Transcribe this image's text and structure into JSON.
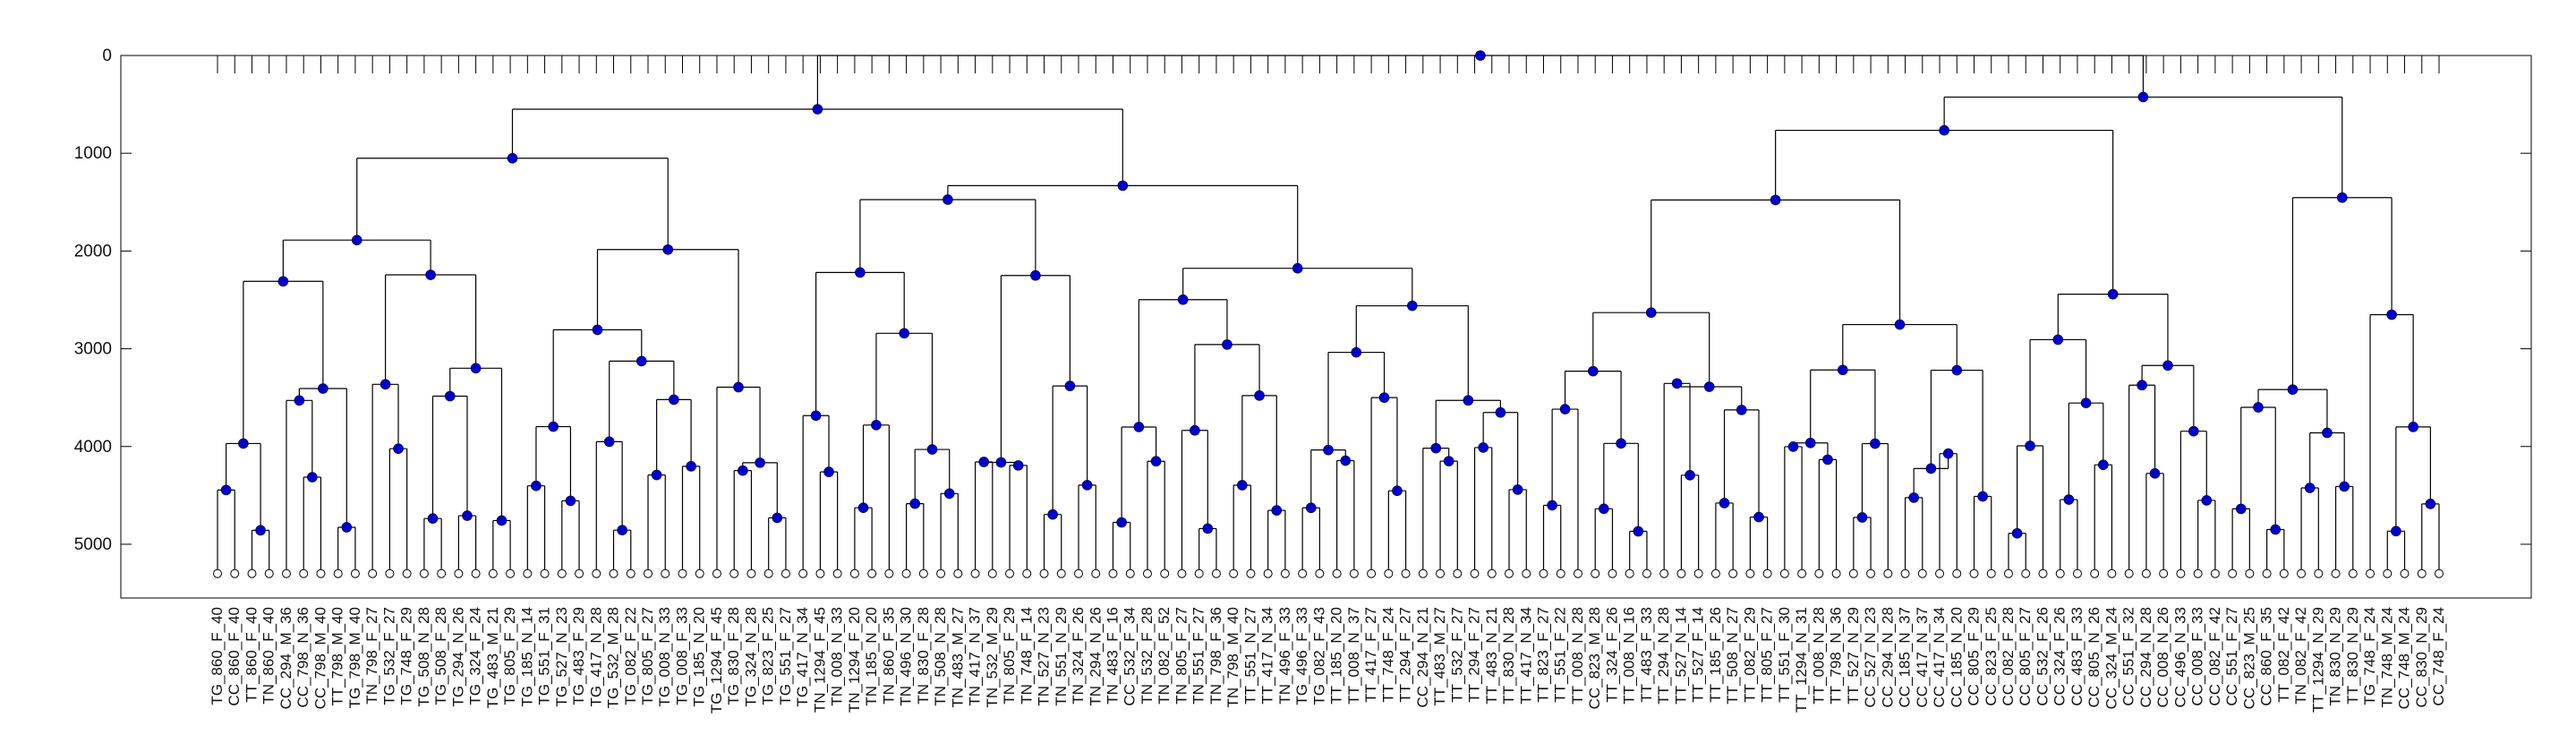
{
  "chart_data": {
    "type": "dendrogram",
    "title": "",
    "xlabel": "",
    "ylabel": "",
    "ylim": [
      0,
      5550
    ],
    "y_reversed": true,
    "y_ticks": [
      0,
      1000,
      2000,
      3000,
      4000,
      5000
    ],
    "grid": false,
    "colors": {
      "link": "#000000",
      "node": "#0000cc",
      "leaf": "#ffffff"
    },
    "leaf_labels": [
      "TG_860_F_40",
      "CC_860_F_40",
      "TT_860_F_40",
      "TN_860_F_40",
      "CC_294_M_36",
      "CC_798_N_36",
      "CC_798_M_40",
      "TT_798_M_40",
      "TG_798_M_40",
      "TN_798_F_27",
      "TG_532_F_27",
      "TG_748_F_29",
      "TG_508_N_28",
      "TG_508_F_28",
      "TG_294_N_26",
      "TG_324_F_24",
      "TG_483_M_21",
      "TG_805_F_29",
      "TG_185_N_14",
      "TG_551_F_31",
      "TG_527_N_23",
      "TG_483_F_29",
      "TG_417_N_28",
      "TG_532_M_28",
      "TG_082_F_22",
      "TG_805_F_27",
      "TG_008_N_33",
      "TG_008_F_33",
      "TG_185_N_20",
      "TG_1294_F_45",
      "TG_830_F_28",
      "TG_324_N_28",
      "TG_823_F_25",
      "TG_551_F_27",
      "TG_417_N_34",
      "TN_1294_F_45",
      "TN_008_N_33",
      "TN_1294_F_20",
      "TN_185_N_20",
      "TN_860_F_35",
      "TN_496_N_30",
      "TN_830_F_28",
      "TN_508_N_28",
      "TN_483_M_27",
      "TN_417_N_37",
      "TN_532_M_29",
      "TN_805_F_29",
      "TN_748_F_14",
      "TN_527_N_23",
      "TN_551_N_29",
      "TN_324_F_26",
      "TN_294_N_26",
      "TN_483_F_16",
      "CC_532_F_34",
      "TN_532_F_28",
      "TN_082_F_52",
      "TN_805_F_27",
      "TN_551_F_27",
      "TN_798_F_36",
      "TN_798_M_40",
      "TT_551_N_27",
      "TT_417_N_34",
      "TN_496_F_33",
      "TG_496_F_33",
      "TG_082_F_43",
      "TT_185_N_20",
      "TT_008_N_37",
      "TT_417_F_27",
      "TT_748_F_24",
      "TT_294_F_27",
      "CC_294_N_21",
      "TT_483_M_27",
      "TT_532_F_27",
      "TT_294_F_27",
      "TT_483_N_21",
      "TT_830_N_28",
      "TT_417_N_34",
      "TT_823_F_27",
      "TT_551_F_22",
      "TT_008_N_28",
      "CC_823_M_28",
      "TT_324_F_26",
      "TT_008_N_16",
      "TT_483_F_33",
      "TT_294_N_28",
      "TT_527_N_14",
      "TT_527_F_14",
      "TT_185_F_26",
      "TT_508_N_27",
      "TT_082_F_29",
      "TT_805_F_27",
      "TT_551_F_30",
      "TT_1294_N_31",
      "TT_008_N_28",
      "TT_798_N_36",
      "TT_527_N_29",
      "CC_527_N_23",
      "CC_294_N_28",
      "CC_185_N_37",
      "CC_417_N_37",
      "CC_417_N_34",
      "CC_185_N_20",
      "CC_805_F_29",
      "CC_823_F_25",
      "CC_082_F_28",
      "CC_805_F_27",
      "CC_532_F_26",
      "CC_324_F_26",
      "CC_483_F_33",
      "CC_805_N_26",
      "CC_324_M_24",
      "CC_551_F_32",
      "CC_294_N_28",
      "CC_008_N_26",
      "CC_496_N_33",
      "CC_008_F_33",
      "CC_082_F_42",
      "CC_551_F_27",
      "CC_823_M_25",
      "CC_860_F_35",
      "TT_082_F_42",
      "TN_082_F_42",
      "TT_1294_N_29",
      "TN_830_N_29",
      "TT_830_N_29",
      "TG_748_F_24",
      "TN_748_M_24",
      "CC_748_M_24",
      "CC_830_N_29",
      "CC_748_F_24"
    ]
  }
}
